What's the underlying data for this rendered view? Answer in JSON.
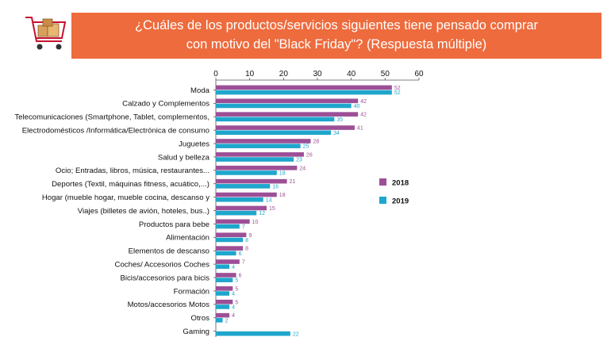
{
  "title_line1": "¿Cuáles de los productos/servicios siguientes tiene pensado comprar",
  "title_line2": "con motivo del \"Black Friday\"? (Respuesta múltiple)",
  "icon": "shopping-cart-icon",
  "colors": {
    "banner": "#ee6b3d",
    "series_2018": "#9c4f96",
    "series_2019": "#1fa6cc"
  },
  "chart_data": {
    "type": "bar",
    "orientation": "horizontal",
    "xlim": [
      0,
      60
    ],
    "x_ticks": [
      "0",
      "10",
      "20",
      "30",
      "40",
      "50",
      "60"
    ],
    "axis_position": "top",
    "legend_placement": "right",
    "categories": [
      "Moda",
      "Calzado y Complementos",
      "Telecomunicaciones (Smartphone, Tablet, complementos,",
      "Electrodomésticos /Informática/Electrónica de consumo",
      "Juguetes",
      "Salud y belleza",
      "Ocio; Entradas, libros, música, restaurantes...",
      "Deportes (Textil, máquinas fitness, acuático,...)",
      "Hogar (mueble hogar, mueble cocina, descanso y",
      "Viajes (billetes de avión, hoteles, bus..)",
      "Productos para bebe",
      "Alimentación",
      "Elementos de descanso",
      "Coches/ Accesorios Coches",
      "Bicis/accesorios para bicis",
      "Formación",
      "Motos/accesorios Motos",
      "Otros",
      "Gaming"
    ],
    "series": [
      {
        "name": "2018",
        "values": [
          52,
          42,
          42,
          41,
          28,
          26,
          24,
          21,
          18,
          15,
          10,
          9,
          8,
          7,
          6,
          5,
          5,
          4,
          null
        ]
      },
      {
        "name": "2019",
        "values": [
          52,
          40,
          35,
          34,
          25,
          23,
          18,
          16,
          14,
          12,
          7,
          8,
          6,
          4,
          5,
          4,
          4,
          2,
          22
        ]
      }
    ]
  }
}
